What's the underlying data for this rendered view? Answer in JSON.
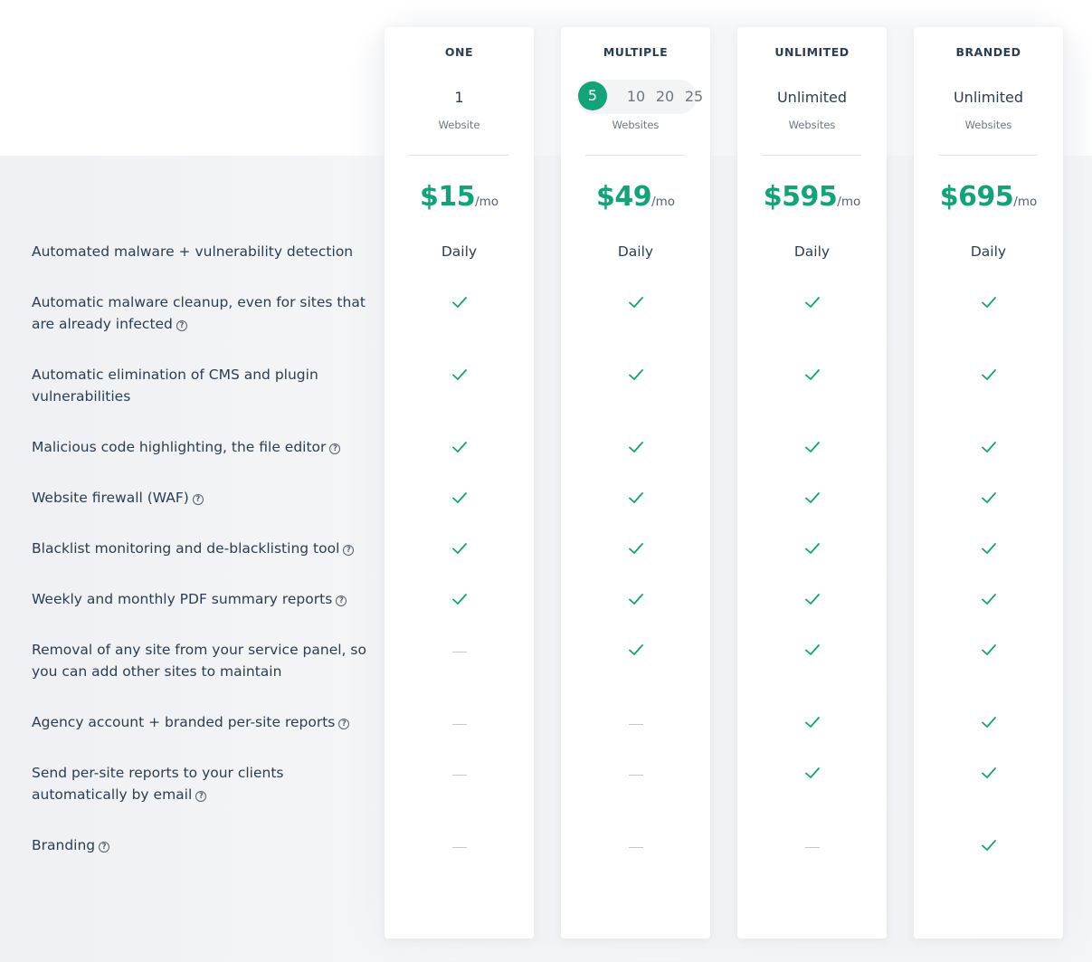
{
  "features": [
    {
      "label": "Automated malware + vulnerability detection",
      "help": false
    },
    {
      "label": "Automatic malware cleanup, even for sites that are already infected",
      "help": true
    },
    {
      "label": "Automatic elimination of CMS and plugin vulnerabilities",
      "help": false
    },
    {
      "label": "Malicious code highlighting, the file editor",
      "help": true
    },
    {
      "label": "Website firewall (WAF)",
      "help": true
    },
    {
      "label": "Blacklist monitoring and de-blacklisting tool",
      "help": true
    },
    {
      "label": "Weekly and monthly PDF summary reports",
      "help": true
    },
    {
      "label": "Removal of any site from your service panel, so you can add other sites to maintain",
      "help": false
    },
    {
      "label": "Agency account + branded per-site reports",
      "help": true
    },
    {
      "label": "Send per-site reports to your clients automatically by email",
      "help": true
    },
    {
      "label": "Branding",
      "help": true
    }
  ],
  "plans": [
    {
      "name": "ONE",
      "count": "1",
      "unit": "Website",
      "price": "$15",
      "per": "/mo",
      "cells": [
        "Daily",
        "check",
        "check",
        "check",
        "check",
        "check",
        "check",
        "dash",
        "dash",
        "dash",
        "dash"
      ]
    },
    {
      "name": "MULTIPLE",
      "count": "",
      "unit": "Websites",
      "price": "$49",
      "per": "/mo",
      "selector": {
        "options": [
          "5",
          "10",
          "20",
          "25"
        ],
        "selected": "5"
      },
      "cells": [
        "Daily",
        "check",
        "check",
        "check",
        "check",
        "check",
        "check",
        "check",
        "dash",
        "dash",
        "dash"
      ]
    },
    {
      "name": "UNLIMITED",
      "count": "Unlimited",
      "unit": "Websites",
      "price": "$595",
      "per": "/mo",
      "cells": [
        "Daily",
        "check",
        "check",
        "check",
        "check",
        "check",
        "check",
        "check",
        "check",
        "check",
        "dash"
      ]
    },
    {
      "name": "BRANDED",
      "count": "Unlimited",
      "unit": "Websites",
      "price": "$695",
      "per": "/mo",
      "cells": [
        "Daily",
        "check",
        "check",
        "check",
        "check",
        "check",
        "check",
        "check",
        "check",
        "check",
        "check"
      ]
    }
  ],
  "colors": {
    "accent": "#12a378",
    "text": "#2b3e51",
    "muted": "#6b7785"
  },
  "icons": {
    "check": "check-icon",
    "dash": "dash-icon",
    "help": "help-circle-icon"
  }
}
